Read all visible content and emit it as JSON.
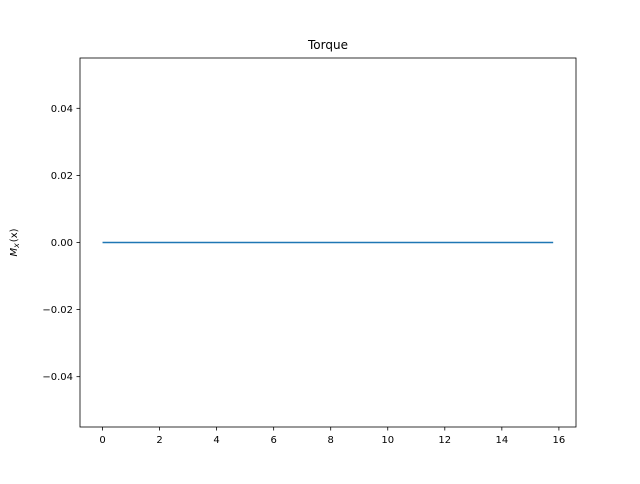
{
  "chart_data": {
    "type": "line",
    "title": "Torque",
    "xlabel": "",
    "ylabel_main": "M",
    "ylabel_sub": "x",
    "ylabel_tail": "(x)",
    "xlim": [
      -0.79,
      16.6
    ],
    "ylim": [
      -0.055,
      0.055
    ],
    "xticks": [
      0,
      2,
      4,
      6,
      8,
      10,
      12,
      14,
      16
    ],
    "xtick_labels": [
      "0",
      "2",
      "4",
      "6",
      "8",
      "10",
      "12",
      "14",
      "16"
    ],
    "yticks": [
      -0.04,
      -0.02,
      0.0,
      0.02,
      0.04
    ],
    "ytick_labels": [
      "−0.04",
      "−0.02",
      "0.00",
      "0.02",
      "0.04"
    ],
    "grid": false,
    "series": [
      {
        "x": [
          0,
          15.8
        ],
        "y": [
          0,
          0
        ],
        "color": "#1f77b4"
      }
    ]
  }
}
